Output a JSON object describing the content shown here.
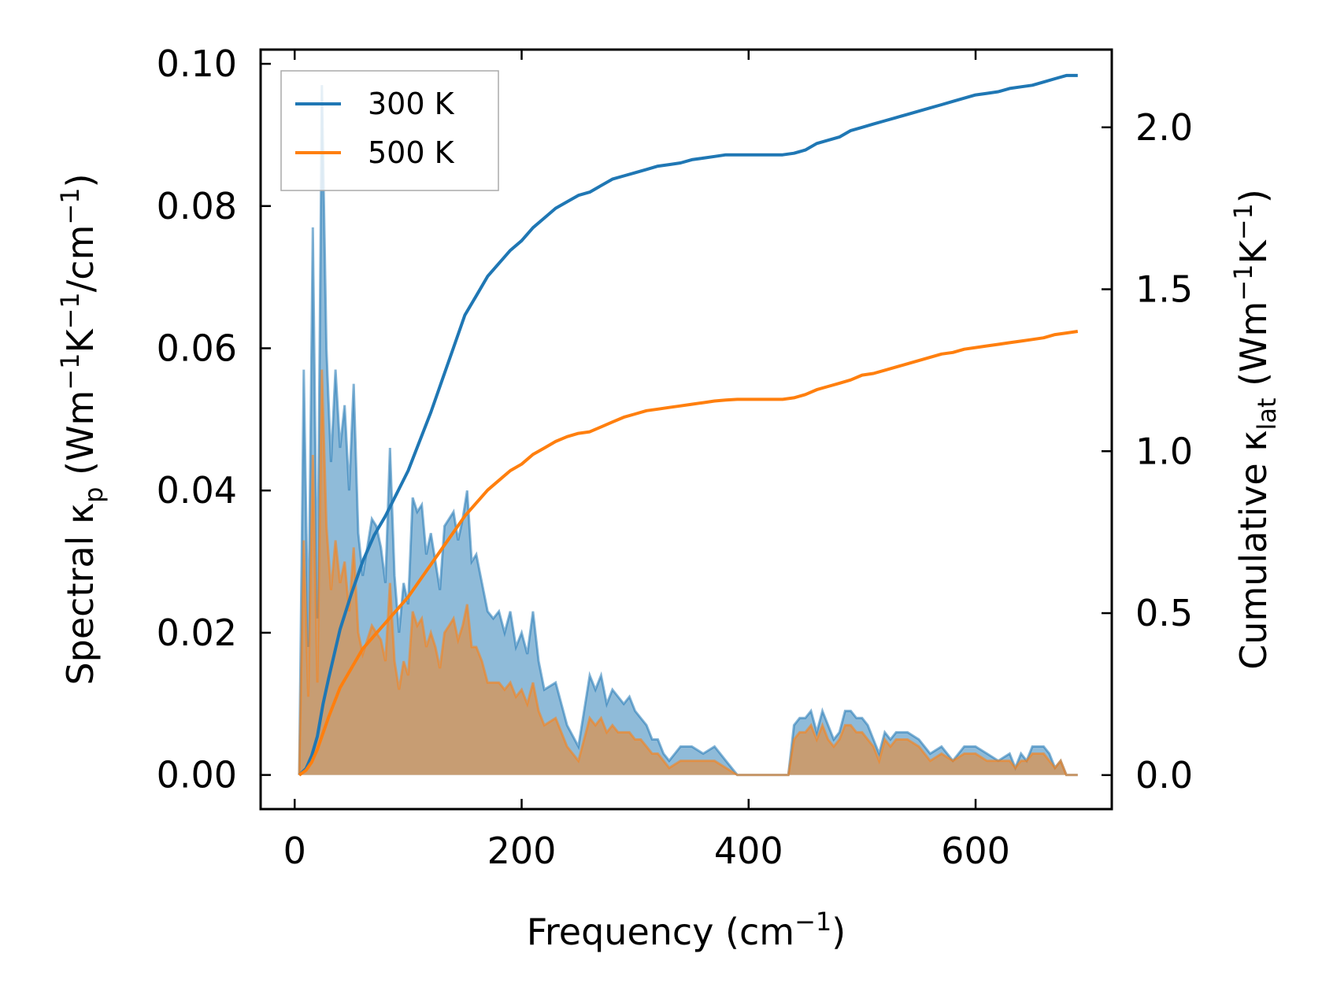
{
  "chart_data": {
    "type": "line",
    "title": "",
    "xlabel": "Frequency",
    "xlabel_unit": "(cm",
    "xlabel_unit_sup": "−1",
    "xlabel_unit_close": ")",
    "ylabel_left": {
      "text": "Spectral κ",
      "sub": "p",
      "unit": " (Wm",
      "sup1": "−1",
      "mid": "K",
      "sup2": "−1",
      "unit2": "/cm",
      "sup3": "−1",
      "close": ")"
    },
    "ylabel_right": {
      "text": "Cumulative κ",
      "sub": "lat",
      "unit": " (Wm",
      "sup1": "−1",
      "mid": "K",
      "sup2": "−1",
      "close": ")"
    },
    "xlim": [
      -30,
      720
    ],
    "ylim_left": [
      -0.0048,
      0.102
    ],
    "ylim_right": [
      -0.105,
      2.24
    ],
    "x_ticks": [
      0,
      200,
      400,
      600
    ],
    "x_tick_labels": [
      "0",
      "200",
      "400",
      "600"
    ],
    "y_left_ticks": [
      0.0,
      0.02,
      0.04,
      0.06,
      0.08,
      0.1
    ],
    "y_left_tick_labels": [
      "0.00",
      "0.02",
      "0.04",
      "0.06",
      "0.08",
      "0.10"
    ],
    "y_right_ticks": [
      0.0,
      0.5,
      1.0,
      1.5,
      2.0
    ],
    "y_right_tick_labels": [
      "0.0",
      "0.5",
      "1.0",
      "1.5",
      "2.0"
    ],
    "legend": {
      "position": "top-left",
      "entries": [
        "300 K",
        "500 K"
      ]
    },
    "colors": {
      "300K": "#1f77b4",
      "500K": "#ff7f0e"
    },
    "spectral_x": [
      4,
      8,
      12,
      16,
      20,
      24,
      28,
      32,
      36,
      40,
      44,
      48,
      52,
      56,
      60,
      64,
      68,
      72,
      76,
      80,
      84,
      88,
      92,
      96,
      100,
      104,
      108,
      112,
      116,
      120,
      124,
      128,
      132,
      136,
      140,
      144,
      148,
      152,
      156,
      160,
      165,
      170,
      175,
      180,
      185,
      190,
      195,
      200,
      205,
      210,
      215,
      220,
      230,
      240,
      250,
      260,
      265,
      270,
      275,
      280,
      285,
      290,
      295,
      300,
      305,
      310,
      315,
      320,
      325,
      330,
      340,
      350,
      360,
      370,
      380,
      390,
      400,
      410,
      420,
      430,
      435,
      440,
      445,
      450,
      455,
      460,
      465,
      470,
      475,
      480,
      485,
      490,
      495,
      500,
      505,
      510,
      515,
      520,
      525,
      530,
      540,
      550,
      560,
      570,
      580,
      590,
      600,
      610,
      620,
      630,
      635,
      640,
      645,
      650,
      655,
      660,
      665,
      670,
      675,
      680,
      685,
      690
    ],
    "series": [
      {
        "name": "300 K",
        "spectral": [
          0.0,
          0.057,
          0.018,
          0.077,
          0.022,
          0.097,
          0.06,
          0.044,
          0.057,
          0.046,
          0.052,
          0.04,
          0.055,
          0.034,
          0.028,
          0.032,
          0.036,
          0.035,
          0.032,
          0.027,
          0.046,
          0.028,
          0.02,
          0.027,
          0.024,
          0.039,
          0.037,
          0.038,
          0.031,
          0.034,
          0.03,
          0.026,
          0.035,
          0.036,
          0.037,
          0.033,
          0.036,
          0.04,
          0.03,
          0.031,
          0.027,
          0.023,
          0.022,
          0.023,
          0.02,
          0.023,
          0.018,
          0.02,
          0.017,
          0.023,
          0.016,
          0.012,
          0.013,
          0.007,
          0.004,
          0.014,
          0.012,
          0.014,
          0.01,
          0.012,
          0.011,
          0.01,
          0.011,
          0.009,
          0.008,
          0.007,
          0.005,
          0.005,
          0.003,
          0.002,
          0.004,
          0.004,
          0.003,
          0.004,
          0.002,
          0.0,
          0.0,
          0.0,
          0.0,
          0.0,
          0.0,
          0.007,
          0.008,
          0.008,
          0.009,
          0.006,
          0.009,
          0.007,
          0.005,
          0.006,
          0.009,
          0.009,
          0.008,
          0.008,
          0.007,
          0.005,
          0.003,
          0.006,
          0.005,
          0.006,
          0.006,
          0.005,
          0.003,
          0.004,
          0.002,
          0.004,
          0.004,
          0.003,
          0.002,
          0.003,
          0.001,
          0.003,
          0.002,
          0.004,
          0.004,
          0.004,
          0.003,
          0.001,
          0.002,
          0.0,
          0.0,
          0.0
        ],
        "cumulative_x": [
          4,
          10,
          15,
          20,
          25,
          30,
          40,
          50,
          60,
          70,
          80,
          90,
          100,
          110,
          120,
          130,
          140,
          150,
          160,
          170,
          180,
          190,
          200,
          210,
          220,
          230,
          240,
          250,
          260,
          270,
          280,
          290,
          300,
          310,
          320,
          330,
          340,
          350,
          360,
          370,
          380,
          390,
          400,
          410,
          420,
          430,
          440,
          450,
          460,
          470,
          480,
          490,
          500,
          510,
          520,
          530,
          540,
          550,
          560,
          570,
          580,
          590,
          600,
          610,
          620,
          630,
          640,
          650,
          660,
          670,
          680,
          690
        ],
        "cumulative": [
          0.0,
          0.02,
          0.06,
          0.12,
          0.22,
          0.3,
          0.45,
          0.56,
          0.66,
          0.74,
          0.8,
          0.87,
          0.94,
          1.03,
          1.12,
          1.22,
          1.32,
          1.42,
          1.48,
          1.54,
          1.58,
          1.62,
          1.65,
          1.69,
          1.72,
          1.75,
          1.77,
          1.79,
          1.8,
          1.82,
          1.84,
          1.85,
          1.86,
          1.87,
          1.88,
          1.885,
          1.89,
          1.9,
          1.905,
          1.91,
          1.915,
          1.915,
          1.915,
          1.915,
          1.915,
          1.915,
          1.92,
          1.93,
          1.95,
          1.96,
          1.97,
          1.99,
          2.0,
          2.01,
          2.02,
          2.03,
          2.04,
          2.05,
          2.06,
          2.07,
          2.08,
          2.09,
          2.1,
          2.105,
          2.11,
          2.12,
          2.125,
          2.13,
          2.14,
          2.15,
          2.16,
          2.16
        ]
      },
      {
        "name": "500 K",
        "spectral": [
          0.0,
          0.033,
          0.011,
          0.045,
          0.013,
          0.057,
          0.035,
          0.026,
          0.033,
          0.027,
          0.03,
          0.023,
          0.032,
          0.02,
          0.017,
          0.019,
          0.021,
          0.02,
          0.019,
          0.016,
          0.027,
          0.016,
          0.012,
          0.016,
          0.014,
          0.023,
          0.021,
          0.022,
          0.018,
          0.02,
          0.018,
          0.015,
          0.02,
          0.021,
          0.022,
          0.019,
          0.021,
          0.024,
          0.018,
          0.018,
          0.016,
          0.013,
          0.013,
          0.013,
          0.012,
          0.013,
          0.011,
          0.012,
          0.01,
          0.013,
          0.009,
          0.007,
          0.008,
          0.004,
          0.002,
          0.008,
          0.007,
          0.008,
          0.006,
          0.007,
          0.006,
          0.006,
          0.006,
          0.005,
          0.005,
          0.004,
          0.003,
          0.003,
          0.002,
          0.001,
          0.002,
          0.002,
          0.002,
          0.002,
          0.001,
          0.0,
          0.0,
          0.0,
          0.0,
          0.0,
          0.0,
          0.005,
          0.006,
          0.006,
          0.007,
          0.005,
          0.007,
          0.005,
          0.004,
          0.005,
          0.007,
          0.007,
          0.006,
          0.006,
          0.005,
          0.004,
          0.002,
          0.005,
          0.004,
          0.005,
          0.005,
          0.004,
          0.002,
          0.003,
          0.002,
          0.003,
          0.003,
          0.002,
          0.002,
          0.002,
          0.001,
          0.002,
          0.002,
          0.003,
          0.003,
          0.003,
          0.002,
          0.001,
          0.002,
          0.0,
          0.0,
          0.0
        ],
        "cumulative_x": [
          4,
          10,
          15,
          20,
          25,
          30,
          40,
          50,
          60,
          70,
          80,
          90,
          100,
          110,
          120,
          130,
          140,
          150,
          160,
          170,
          180,
          190,
          200,
          210,
          220,
          230,
          240,
          250,
          260,
          270,
          280,
          290,
          300,
          310,
          320,
          330,
          340,
          350,
          360,
          370,
          380,
          390,
          400,
          410,
          420,
          430,
          440,
          450,
          460,
          470,
          480,
          490,
          500,
          510,
          520,
          530,
          540,
          550,
          560,
          570,
          580,
          590,
          600,
          610,
          620,
          630,
          640,
          650,
          660,
          670,
          680,
          690
        ],
        "cumulative": [
          0.0,
          0.015,
          0.04,
          0.08,
          0.13,
          0.18,
          0.27,
          0.33,
          0.39,
          0.43,
          0.47,
          0.51,
          0.55,
          0.6,
          0.65,
          0.7,
          0.75,
          0.8,
          0.84,
          0.88,
          0.91,
          0.94,
          0.96,
          0.99,
          1.01,
          1.03,
          1.045,
          1.055,
          1.06,
          1.075,
          1.09,
          1.105,
          1.115,
          1.125,
          1.13,
          1.135,
          1.14,
          1.145,
          1.15,
          1.155,
          1.158,
          1.16,
          1.16,
          1.16,
          1.16,
          1.16,
          1.165,
          1.175,
          1.19,
          1.2,
          1.21,
          1.22,
          1.235,
          1.24,
          1.25,
          1.26,
          1.27,
          1.28,
          1.29,
          1.3,
          1.305,
          1.315,
          1.32,
          1.325,
          1.33,
          1.335,
          1.34,
          1.345,
          1.35,
          1.36,
          1.365,
          1.37
        ]
      }
    ]
  }
}
